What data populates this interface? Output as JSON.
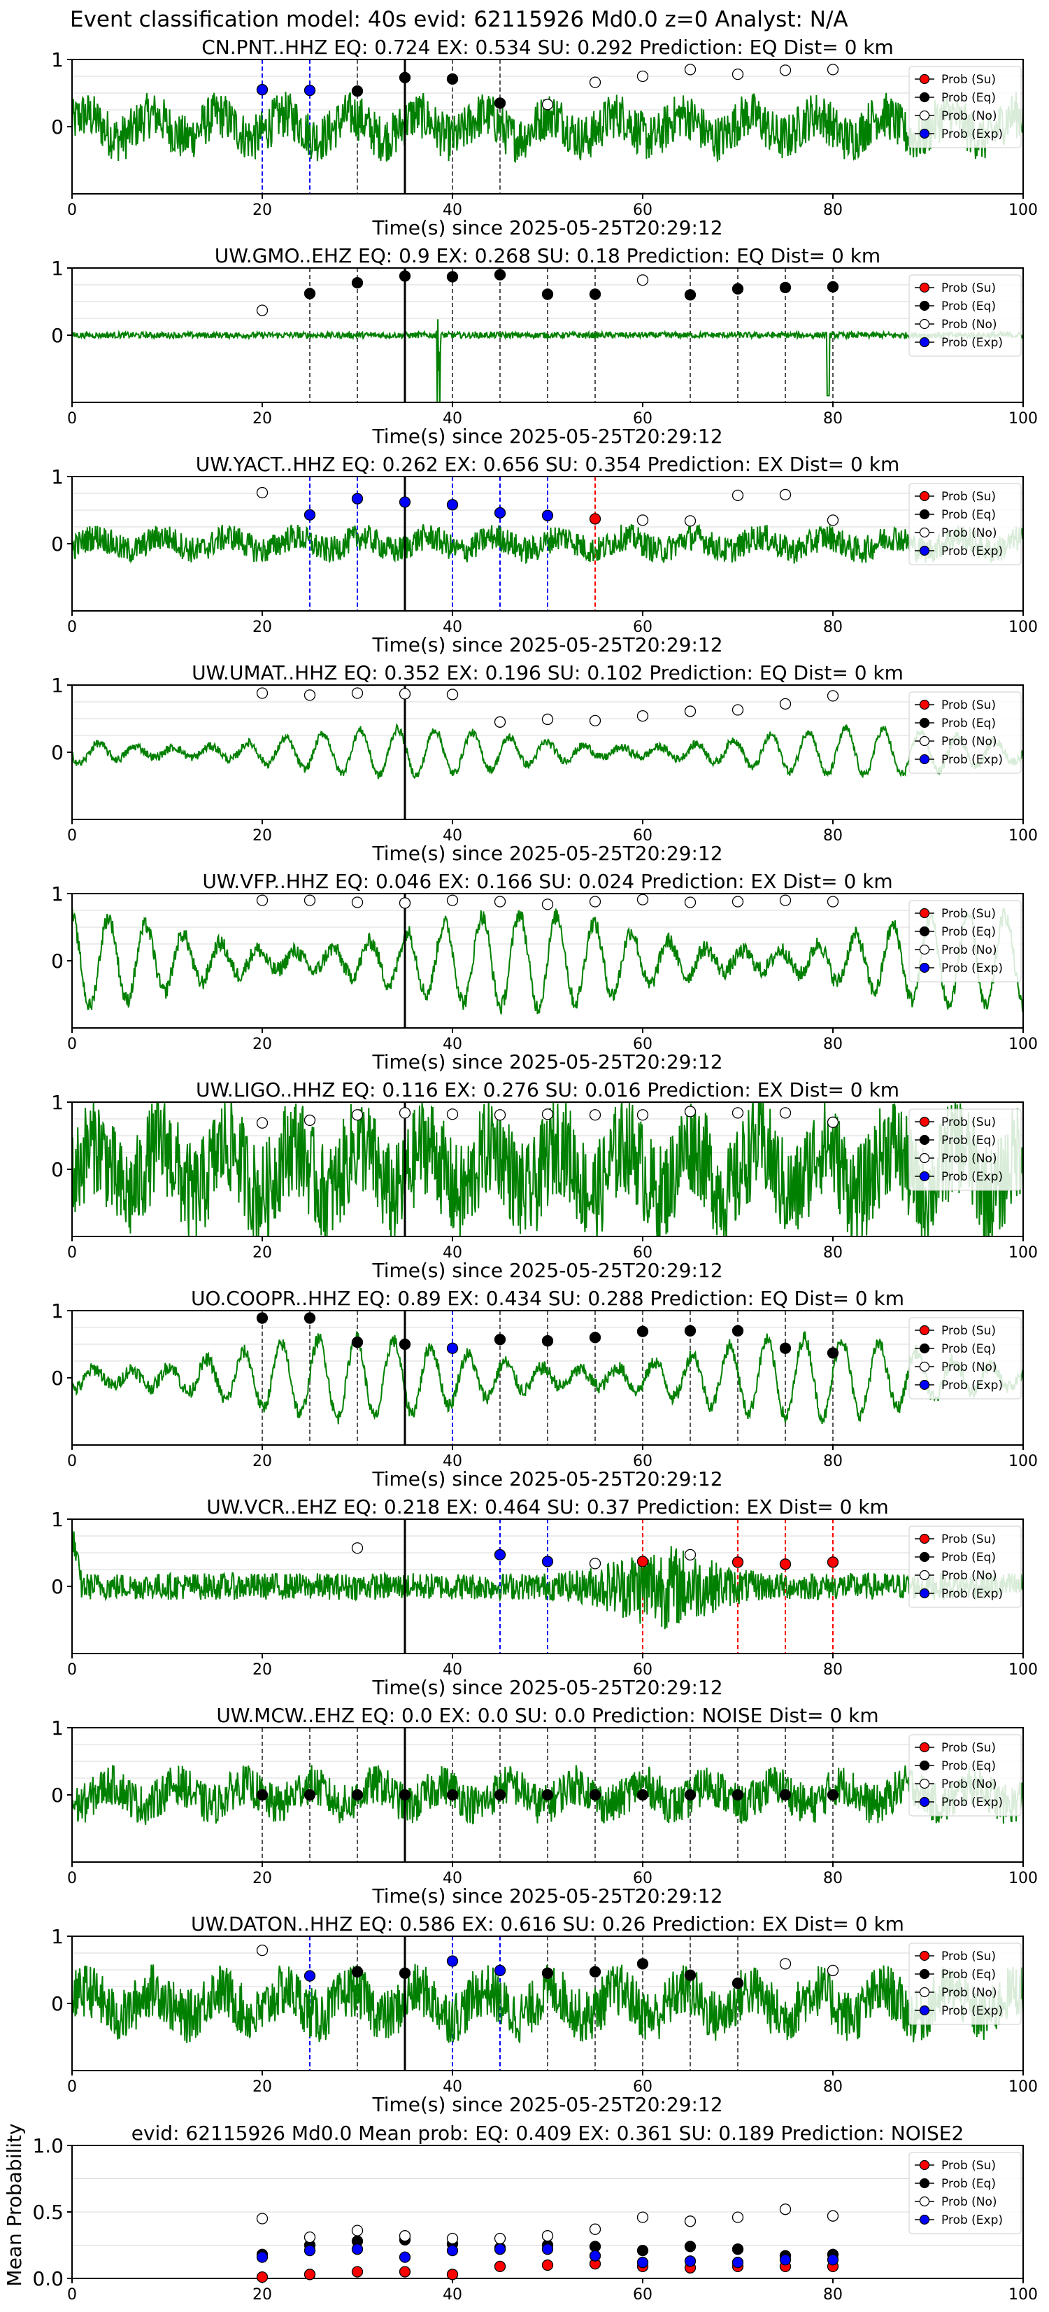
{
  "figure": {
    "title": "Event classification model: 40s evid: 62115926 Md0.0 z=0 Analyst: N/A",
    "colors": {
      "trace": "#008000",
      "su": "#ff0000",
      "eq": "#000000",
      "no": "#ffffff",
      "exp": "#0000ff",
      "pick": "#000000",
      "grid": "#d9d9d9"
    }
  },
  "legend": {
    "entries": [
      "Prob (Su)",
      "Prob (Eq)",
      "Prob (No)",
      "Prob (Exp)"
    ],
    "placement": "top-right"
  },
  "chart_data": [
    {
      "type": "scatter",
      "title": "CN.PNT..HHZ   EQ: 0.724  EX: 0.534  SU: 0.292   Prediction: EQ    Dist= 0 km",
      "xlabel": "Time(s) since 2025-05-25T20:29:12",
      "xlim": [
        0,
        100
      ],
      "xticks": [
        0,
        20,
        40,
        60,
        80,
        100
      ],
      "ylim": [
        -1,
        1
      ],
      "yticks": [
        0,
        1
      ],
      "pick_time": 35,
      "trace_amplitude": 0.35,
      "trace_style": "noisy",
      "series": [
        {
          "name": "Prob (Eq)",
          "class": "eq",
          "x": [
            30,
            35,
            40,
            45
          ],
          "y": [
            0.53,
            0.73,
            0.71,
            0.35
          ]
        },
        {
          "name": "Prob (No)",
          "class": "no",
          "x": [
            50,
            55,
            60,
            65,
            70,
            75,
            80
          ],
          "y": [
            0.33,
            0.66,
            0.75,
            0.85,
            0.78,
            0.84,
            0.85
          ]
        },
        {
          "name": "Prob (Exp)",
          "class": "exp",
          "x": [
            20,
            25
          ],
          "y": [
            0.55,
            0.54
          ]
        }
      ]
    },
    {
      "type": "scatter",
      "title": "UW.GMO..EHZ   EQ: 0.9  EX: 0.268  SU: 0.18   Prediction: EQ    Dist= 0 km",
      "xlabel": "Time(s) since 2025-05-25T20:29:12",
      "xlim": [
        0,
        100
      ],
      "xticks": [
        0,
        20,
        40,
        60,
        80,
        100
      ],
      "ylim": [
        -1,
        1
      ],
      "yticks": [
        0,
        1
      ],
      "pick_time": 35,
      "trace_amplitude": 0.06,
      "trace_style": "quiet",
      "series": [
        {
          "name": "Prob (Eq)",
          "class": "eq",
          "x": [
            25,
            30,
            35,
            40,
            45,
            50,
            55,
            65,
            70,
            75,
            80
          ],
          "y": [
            0.62,
            0.78,
            0.88,
            0.87,
            0.9,
            0.61,
            0.61,
            0.6,
            0.69,
            0.71,
            0.72
          ]
        },
        {
          "name": "Prob (No)",
          "class": "no",
          "x": [
            20,
            60
          ],
          "y": [
            0.37,
            0.82
          ]
        }
      ]
    },
    {
      "type": "scatter",
      "title": "UW.YACT..HHZ   EQ: 0.262  EX: 0.656  SU: 0.354   Prediction: EX    Dist= 0 km",
      "xlabel": "Time(s) since 2025-05-25T20:29:12",
      "xlim": [
        0,
        100
      ],
      "xticks": [
        0,
        20,
        40,
        60,
        80,
        100
      ],
      "ylim": [
        -1,
        1
      ],
      "yticks": [
        0,
        1
      ],
      "pick_time": 35,
      "trace_amplitude": 0.2,
      "trace_style": "noisy",
      "series": [
        {
          "name": "Prob (Su)",
          "class": "su",
          "x": [
            55
          ],
          "y": [
            0.37
          ]
        },
        {
          "name": "Prob (No)",
          "class": "no",
          "x": [
            20,
            60,
            65,
            70,
            75,
            80
          ],
          "y": [
            0.76,
            0.35,
            0.34,
            0.72,
            0.73,
            0.35
          ]
        },
        {
          "name": "Prob (Exp)",
          "class": "exp",
          "x": [
            25,
            30,
            35,
            40,
            45,
            50
          ],
          "y": [
            0.43,
            0.67,
            0.62,
            0.58,
            0.46,
            0.42
          ]
        }
      ]
    },
    {
      "type": "scatter",
      "title": "UW.UMAT..HHZ   EQ: 0.352  EX: 0.196  SU: 0.102   Prediction: EQ    Dist= 0 km",
      "xlabel": "Time(s) since 2025-05-25T20:29:12",
      "xlim": [
        0,
        100
      ],
      "xticks": [
        0,
        20,
        40,
        60,
        80,
        100
      ],
      "ylim": [
        -1,
        1
      ],
      "yticks": [
        0,
        1
      ],
      "pick_time": 35,
      "trace_amplitude": 0.35,
      "trace_style": "wavy",
      "series": [
        {
          "name": "Prob (No)",
          "class": "no",
          "x": [
            20,
            25,
            30,
            35,
            40,
            45,
            50,
            55,
            60,
            65,
            70,
            75,
            80
          ],
          "y": [
            0.88,
            0.85,
            0.88,
            0.87,
            0.86,
            0.45,
            0.49,
            0.47,
            0.54,
            0.61,
            0.63,
            0.72,
            0.84
          ]
        }
      ]
    },
    {
      "type": "scatter",
      "title": "UW.VFP..HHZ   EQ: 0.046  EX: 0.166  SU: 0.024   Prediction: EX    Dist= 0 km",
      "xlabel": "Time(s) since 2025-05-25T20:29:12",
      "xlim": [
        0,
        100
      ],
      "xticks": [
        0,
        20,
        40,
        60,
        80,
        100
      ],
      "ylim": [
        -1,
        1
      ],
      "yticks": [
        0,
        1
      ],
      "pick_time": 35,
      "trace_amplitude": 0.7,
      "trace_style": "wavy",
      "series": [
        {
          "name": "Prob (No)",
          "class": "no",
          "x": [
            20,
            25,
            30,
            35,
            40,
            45,
            50,
            55,
            60,
            65,
            70,
            75,
            80
          ],
          "y": [
            0.9,
            0.9,
            0.87,
            0.86,
            0.9,
            0.88,
            0.84,
            0.88,
            0.91,
            0.87,
            0.88,
            0.9,
            0.88
          ]
        }
      ]
    },
    {
      "type": "scatter",
      "title": "UW.LIGO..HHZ   EQ: 0.116  EX: 0.276  SU: 0.016   Prediction: EX    Dist= 0 km",
      "xlabel": "Time(s) since 2025-05-25T20:29:12",
      "xlim": [
        0,
        100
      ],
      "xticks": [
        0,
        20,
        40,
        60,
        80,
        100
      ],
      "ylim": [
        -1,
        1
      ],
      "yticks": [
        0,
        1
      ],
      "pick_time": 35,
      "trace_amplitude": 0.75,
      "trace_style": "noisy",
      "series": [
        {
          "name": "Prob (No)",
          "class": "no",
          "x": [
            20,
            25,
            30,
            35,
            40,
            45,
            50,
            55,
            60,
            65,
            70,
            75,
            80
          ],
          "y": [
            0.69,
            0.73,
            0.81,
            0.84,
            0.82,
            0.81,
            0.82,
            0.81,
            0.81,
            0.86,
            0.84,
            0.84,
            0.7
          ]
        }
      ]
    },
    {
      "type": "scatter",
      "title": "UO.COOPR..HHZ   EQ: 0.89  EX: 0.434  SU: 0.288   Prediction: EQ    Dist= 0 km",
      "xlabel": "Time(s) since 2025-05-25T20:29:12",
      "xlim": [
        0,
        100
      ],
      "xticks": [
        0,
        20,
        40,
        60,
        80,
        100
      ],
      "ylim": [
        -1,
        1
      ],
      "yticks": [
        0,
        1
      ],
      "pick_time": 35,
      "trace_amplitude": 0.6,
      "trace_style": "wavy",
      "series": [
        {
          "name": "Prob (Eq)",
          "class": "eq",
          "x": [
            20,
            25,
            30,
            35,
            45,
            50,
            55,
            60,
            65,
            70,
            75,
            80
          ],
          "y": [
            0.89,
            0.89,
            0.53,
            0.5,
            0.57,
            0.55,
            0.6,
            0.69,
            0.7,
            0.7,
            0.44,
            0.37
          ]
        },
        {
          "name": "Prob (Exp)",
          "class": "exp",
          "x": [
            40
          ],
          "y": [
            0.44
          ]
        }
      ]
    },
    {
      "type": "scatter",
      "title": "UW.VCR..EHZ   EQ: 0.218  EX: 0.464  SU: 0.37   Prediction: EX    Dist= 0 km",
      "xlabel": "Time(s) since 2025-05-25T20:29:12",
      "xlim": [
        0,
        100
      ],
      "xticks": [
        0,
        20,
        40,
        60,
        80,
        100
      ],
      "ylim": [
        -1,
        1
      ],
      "yticks": [
        0,
        1
      ],
      "pick_time": 35,
      "trace_amplitude": 0.2,
      "trace_style": "burst",
      "series": [
        {
          "name": "Prob (Su)",
          "class": "su",
          "x": [
            60,
            70,
            75,
            80
          ],
          "y": [
            0.37,
            0.36,
            0.33,
            0.36
          ]
        },
        {
          "name": "Prob (No)",
          "class": "no",
          "x": [
            30,
            55,
            65
          ],
          "y": [
            0.57,
            0.34,
            0.47
          ]
        },
        {
          "name": "Prob (Exp)",
          "class": "exp",
          "x": [
            45,
            50
          ],
          "y": [
            0.47,
            0.37
          ]
        }
      ]
    },
    {
      "type": "scatter",
      "title": "UW.MCW..EHZ   EQ: 0.0  EX: 0.0  SU: 0.0   Prediction: NOISE    Dist= 0 km",
      "xlabel": "Time(s) since 2025-05-25T20:29:12",
      "xlim": [
        0,
        100
      ],
      "xticks": [
        0,
        20,
        40,
        60,
        80,
        100
      ],
      "ylim": [
        -1,
        1
      ],
      "yticks": [
        0,
        1
      ],
      "pick_time": 35,
      "trace_amplitude": 0.3,
      "trace_style": "noisy",
      "series": [
        {
          "name": "Prob (Eq)",
          "class": "eq",
          "x": [
            20,
            25,
            30,
            35,
            40,
            45,
            50,
            55,
            60,
            65,
            70,
            75,
            80
          ],
          "y": [
            0,
            0,
            0,
            0,
            0,
            0,
            0,
            0,
            0,
            0,
            0,
            0,
            0
          ]
        }
      ]
    },
    {
      "type": "scatter",
      "title": "UW.DATON..HHZ   EQ: 0.586  EX: 0.616  SU: 0.26   Prediction: EX    Dist= 0 km",
      "xlabel": "Time(s) since 2025-05-25T20:29:12",
      "xlim": [
        0,
        100
      ],
      "xticks": [
        0,
        20,
        40,
        60,
        80,
        100
      ],
      "ylim": [
        -1,
        1
      ],
      "yticks": [
        0,
        1
      ],
      "pick_time": 35,
      "trace_amplitude": 0.4,
      "trace_style": "noisy",
      "series": [
        {
          "name": "Prob (Eq)",
          "class": "eq",
          "x": [
            30,
            35,
            50,
            55,
            60,
            65,
            70
          ],
          "y": [
            0.47,
            0.45,
            0.45,
            0.47,
            0.59,
            0.42,
            0.3
          ]
        },
        {
          "name": "Prob (No)",
          "class": "no",
          "x": [
            20,
            75,
            80
          ],
          "y": [
            0.79,
            0.59,
            0.49
          ]
        },
        {
          "name": "Prob (Exp)",
          "class": "exp",
          "x": [
            25,
            40,
            45
          ],
          "y": [
            0.41,
            0.63,
            0.49
          ]
        }
      ]
    },
    {
      "type": "scatter",
      "title": "evid: 62115926   Md0.0   Mean prob:   EQ: 0.409   EX: 0.361   SU: 0.189   Prediction: NOISE2",
      "xlabel": "",
      "ylabel": "Mean Probability",
      "xlim": [
        0,
        100
      ],
      "xticks": [
        0,
        20,
        40,
        60,
        80,
        100
      ],
      "ylim": [
        0,
        1
      ],
      "yticks": [
        0.0,
        0.5,
        1.0
      ],
      "series": [
        {
          "name": "Prob (Su)",
          "class": "su",
          "x": [
            20,
            25,
            30,
            35,
            40,
            45,
            50,
            55,
            60,
            65,
            70,
            75,
            80
          ],
          "y": [
            0.01,
            0.03,
            0.05,
            0.05,
            0.03,
            0.09,
            0.1,
            0.11,
            0.09,
            0.08,
            0.09,
            0.09,
            0.09
          ]
        },
        {
          "name": "Prob (Eq)",
          "class": "eq",
          "x": [
            20,
            25,
            30,
            35,
            40,
            45,
            50,
            55,
            60,
            65,
            70,
            75,
            80
          ],
          "y": [
            0.18,
            0.25,
            0.28,
            0.29,
            0.26,
            0.23,
            0.25,
            0.24,
            0.21,
            0.24,
            0.22,
            0.17,
            0.18
          ]
        },
        {
          "name": "Prob (No)",
          "class": "no",
          "x": [
            20,
            25,
            30,
            35,
            40,
            45,
            50,
            55,
            60,
            65,
            70,
            75,
            80
          ],
          "y": [
            0.45,
            0.31,
            0.36,
            0.32,
            0.3,
            0.3,
            0.32,
            0.37,
            0.46,
            0.43,
            0.46,
            0.52,
            0.47
          ]
        },
        {
          "name": "Prob (Exp)",
          "class": "exp",
          "x": [
            20,
            25,
            30,
            35,
            40,
            45,
            50,
            55,
            60,
            65,
            70,
            75,
            80
          ],
          "y": [
            0.16,
            0.21,
            0.22,
            0.16,
            0.21,
            0.22,
            0.22,
            0.17,
            0.12,
            0.13,
            0.12,
            0.14,
            0.14
          ]
        }
      ]
    }
  ]
}
